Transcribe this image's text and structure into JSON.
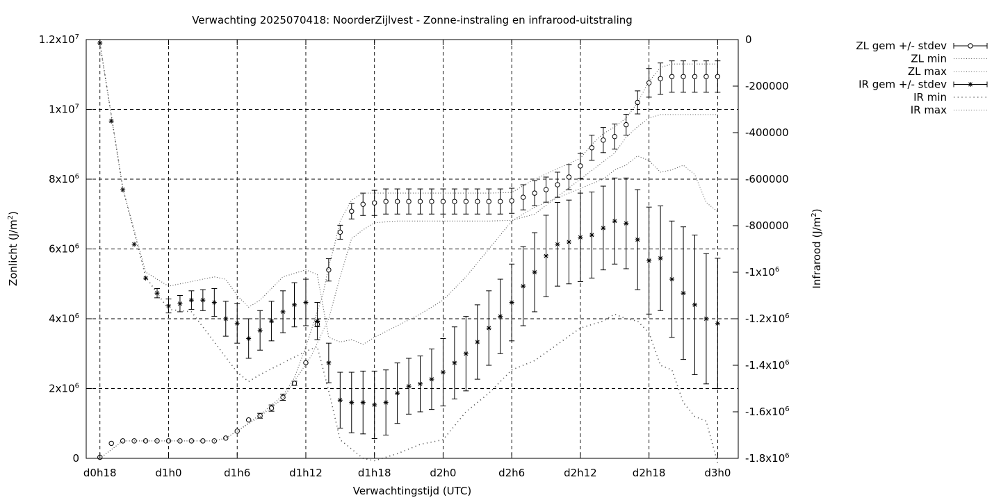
{
  "chart_data": {
    "type": "scatter",
    "title": "Verwachting 2025070418: NoorderZijlvest - Zonne-instraling en infrarood-uitstraling",
    "xlabel": "Verwachtingstijd (UTC)",
    "ylabel_left": {
      "text": "Zonlicht (J/m",
      "sup": "2",
      "close": ")"
    },
    "ylabel_right": {
      "text": "Infrarood (J/m",
      "sup": "2",
      "close": ")"
    },
    "x_unit": "hours since d0h0",
    "xlim": [
      16.8,
      73.8
    ],
    "ylim_left": [
      0,
      12000000
    ],
    "ylim_right": [
      -1800000,
      0
    ],
    "grid": true,
    "legend_position": "top-right, outside plot",
    "x_ticks": [
      {
        "value": 18,
        "label": "d0h18"
      },
      {
        "value": 24,
        "label": "d1h0"
      },
      {
        "value": 30,
        "label": "d1h6"
      },
      {
        "value": 36,
        "label": "d1h12"
      },
      {
        "value": 42,
        "label": "d1h18"
      },
      {
        "value": 48,
        "label": "d2h0"
      },
      {
        "value": 54,
        "label": "d2h6"
      },
      {
        "value": 60,
        "label": "d2h12"
      },
      {
        "value": 66,
        "label": "d2h18"
      },
      {
        "value": 72,
        "label": "d3h0"
      }
    ],
    "y_ticks_left": [
      {
        "value": 0,
        "label": "0"
      },
      {
        "value": 2000000,
        "label": "2x10",
        "sup": "6"
      },
      {
        "value": 4000000,
        "label": "4x10",
        "sup": "6"
      },
      {
        "value": 6000000,
        "label": "6x10",
        "sup": "6"
      },
      {
        "value": 8000000,
        "label": "8x10",
        "sup": "6"
      },
      {
        "value": 10000000,
        "label": "1x10",
        "sup": "7"
      },
      {
        "value": 12000000,
        "label": "1.2x10",
        "sup": "7"
      }
    ],
    "y_ticks_right": [
      {
        "value": 0,
        "label": "0"
      },
      {
        "value": -200000,
        "label": "-200000"
      },
      {
        "value": -400000,
        "label": "-400000"
      },
      {
        "value": -600000,
        "label": "-600000"
      },
      {
        "value": -800000,
        "label": "-800000"
      },
      {
        "value": -1000000,
        "label": "-1x10",
        "sup": "6"
      },
      {
        "value": -1200000,
        "label": "-1.2x10",
        "sup": "6"
      },
      {
        "value": -1400000,
        "label": "-1.4x10",
        "sup": "6"
      },
      {
        "value": -1600000,
        "label": "-1.6x10",
        "sup": "6"
      },
      {
        "value": -1800000,
        "label": "-1.8x10",
        "sup": "6"
      }
    ],
    "legend": [
      {
        "label": "ZL gem +/- stdev",
        "style": "errorbar-circle"
      },
      {
        "label": "ZL min",
        "style": "dotted"
      },
      {
        "label": "ZL max",
        "style": "dotted"
      },
      {
        "label": "IR gem +/- stdev",
        "style": "errorbar-star"
      },
      {
        "label": "IR min",
        "style": "dotted-coarse"
      },
      {
        "label": "IR max",
        "style": "dotted"
      }
    ],
    "series": [
      {
        "name": "ZL gem +/- stdev",
        "axis": "left",
        "marker": "circle",
        "x": [
          18,
          19,
          20,
          21,
          22,
          23,
          24,
          25,
          26,
          27,
          28,
          29,
          30,
          31,
          32,
          33,
          34,
          35,
          36,
          37,
          38,
          39,
          40,
          41,
          42,
          43,
          44,
          45,
          46,
          47,
          48,
          49,
          50,
          51,
          52,
          53,
          54,
          55,
          56,
          57,
          58,
          59,
          60,
          61,
          62,
          63,
          64,
          65,
          66,
          67,
          68,
          69,
          70,
          71,
          72
        ],
        "y": [
          30000,
          430000,
          500000,
          500000,
          500000,
          500000,
          500000,
          500000,
          500000,
          500000,
          500000,
          580000,
          780000,
          1100000,
          1220000,
          1440000,
          1750000,
          2150000,
          2740000,
          3840000,
          5400000,
          6480000,
          7080000,
          7280000,
          7320000,
          7360000,
          7360000,
          7360000,
          7360000,
          7360000,
          7360000,
          7360000,
          7360000,
          7360000,
          7360000,
          7360000,
          7380000,
          7480000,
          7600000,
          7700000,
          7840000,
          8060000,
          8380000,
          8900000,
          9120000,
          9220000,
          9560000,
          10200000,
          10760000,
          10880000,
          10940000,
          10940000,
          10940000,
          10940000,
          10940000
        ],
        "err": [
          0,
          0,
          0,
          0,
          0,
          0,
          0,
          0,
          0,
          0,
          0,
          0,
          0,
          0,
          70000,
          90000,
          90000,
          60000,
          0,
          70000,
          320000,
          200000,
          220000,
          320000,
          360000,
          360000,
          360000,
          360000,
          360000,
          360000,
          360000,
          360000,
          360000,
          360000,
          360000,
          360000,
          360000,
          360000,
          360000,
          360000,
          360000,
          360000,
          360000,
          360000,
          360000,
          360000,
          300000,
          330000,
          410000,
          450000,
          450000,
          450000,
          450000,
          450000,
          450000
        ]
      },
      {
        "name": "ZL min",
        "axis": "left",
        "style": "dotted",
        "x": [
          18,
          20,
          22,
          24,
          26,
          28,
          29,
          30,
          32,
          34,
          36,
          36.5,
          37,
          38,
          38.5,
          39,
          40,
          41,
          42,
          44,
          46,
          48,
          50,
          52,
          54,
          56,
          58,
          60,
          62,
          63,
          64,
          65,
          66,
          67,
          68,
          69,
          70,
          71,
          72
        ],
        "y": [
          0,
          500000,
          500000,
          500000,
          500000,
          500000,
          580000,
          780000,
          1200000,
          1720000,
          2700000,
          2950000,
          3300000,
          4000000,
          4600000,
          5200000,
          6300000,
          6550000,
          6750000,
          6800000,
          6800000,
          6800000,
          6800000,
          6800000,
          6820000,
          7000000,
          7500000,
          8000000,
          8500000,
          8750000,
          9200000,
          9500000,
          9750000,
          9850000,
          9850000,
          9850000,
          9850000,
          9850000,
          9850000
        ]
      },
      {
        "name": "ZL max",
        "axis": "left",
        "style": "dotted",
        "x": [
          18,
          20,
          22,
          24,
          26,
          28,
          29,
          30,
          32,
          34,
          35,
          36,
          36.5,
          37,
          37.5,
          38,
          38.5,
          39,
          40,
          41,
          42,
          44,
          46,
          48,
          50,
          52,
          54,
          56,
          58,
          60,
          61,
          62,
          63,
          64,
          65,
          66,
          67,
          68,
          69,
          70,
          71,
          72
        ],
        "y": [
          0,
          500000,
          500000,
          500000,
          500000,
          500000,
          580000,
          780000,
          1250000,
          1800000,
          2300000,
          3200000,
          3700000,
          4200000,
          4700000,
          5500000,
          6100000,
          6800000,
          7400000,
          7600000,
          7600000,
          7600000,
          7600000,
          7600000,
          7600000,
          7600000,
          7620000,
          8000000,
          8300000,
          8600000,
          9000000,
          9300000,
          9500000,
          9750000,
          10200000,
          10800000,
          11200000,
          11300000,
          11300000,
          11300000,
          11300000,
          11300000
        ]
      },
      {
        "name": "IR gem +/- stdev",
        "axis": "right",
        "marker": "star",
        "x": [
          18,
          19,
          20,
          21,
          22,
          23,
          24,
          25,
          26,
          27,
          28,
          29,
          30,
          31,
          32,
          33,
          34,
          35,
          36,
          37,
          38,
          39,
          40,
          41,
          42,
          43,
          44,
          45,
          46,
          47,
          48,
          49,
          50,
          51,
          52,
          53,
          54,
          55,
          56,
          57,
          58,
          59,
          60,
          61,
          62,
          63,
          64,
          65,
          66,
          67,
          68,
          69,
          70,
          71,
          72
        ],
        "y": [
          -15000,
          -350000,
          -645000,
          -880000,
          -1025000,
          -1090000,
          -1145000,
          -1135000,
          -1120000,
          -1120000,
          -1130000,
          -1200000,
          -1220000,
          -1285000,
          -1250000,
          -1210000,
          -1170000,
          -1140000,
          -1130000,
          -1210000,
          -1390000,
          -1550000,
          -1560000,
          -1560000,
          -1570000,
          -1560000,
          -1520000,
          -1490000,
          -1480000,
          -1460000,
          -1430000,
          -1390000,
          -1350000,
          -1300000,
          -1240000,
          -1190000,
          -1130000,
          -1060000,
          -1000000,
          -930000,
          -880000,
          -870000,
          -850000,
          -840000,
          -810000,
          -780000,
          -790000,
          -860000,
          -950000,
          -940000,
          -1030000,
          -1090000,
          -1140000,
          -1200000,
          -1220000
        ],
        "err": [
          0,
          0,
          0,
          0,
          0,
          20000,
          30000,
          35000,
          40000,
          45000,
          60000,
          75000,
          85000,
          85000,
          85000,
          85000,
          90000,
          95000,
          100000,
          80000,
          85000,
          120000,
          130000,
          135000,
          145000,
          140000,
          130000,
          120000,
          120000,
          130000,
          145000,
          155000,
          160000,
          160000,
          160000,
          160000,
          165000,
          170000,
          170000,
          175000,
          180000,
          180000,
          190000,
          185000,
          180000,
          185000,
          195000,
          215000,
          230000,
          225000,
          250000,
          285000,
          300000,
          280000,
          280000
        ]
      },
      {
        "name": "IR min",
        "axis": "right",
        "style": "dotted-coarse",
        "x": [
          18,
          20,
          22,
          24,
          26,
          28,
          30,
          31,
          32,
          34,
          36,
          37,
          38,
          39,
          40,
          41,
          42,
          44,
          46,
          48,
          50,
          52,
          54,
          56,
          58,
          60,
          62,
          63,
          64,
          65,
          66,
          67,
          68,
          69,
          70,
          71,
          72
        ],
        "y": [
          -15000,
          -640000,
          -1020000,
          -1160000,
          -1170000,
          -1300000,
          -1430000,
          -1470000,
          -1440000,
          -1390000,
          -1340000,
          -1320000,
          -1510000,
          -1720000,
          -1760000,
          -1800000,
          -1810000,
          -1780000,
          -1740000,
          -1720000,
          -1600000,
          -1520000,
          -1420000,
          -1380000,
          -1310000,
          -1240000,
          -1210000,
          -1180000,
          -1200000,
          -1210000,
          -1260000,
          -1400000,
          -1420000,
          -1560000,
          -1620000,
          -1640000,
          -1820000
        ]
      },
      {
        "name": "IR max",
        "axis": "right",
        "style": "dotted",
        "x": [
          18,
          20,
          22,
          24,
          26,
          28,
          29,
          30,
          31,
          32,
          34,
          36,
          37,
          38,
          39,
          40,
          41,
          42,
          44,
          46,
          48,
          50,
          52,
          54,
          56,
          58,
          60,
          62,
          63,
          64,
          65,
          66,
          67,
          68,
          69,
          70,
          71,
          72
        ],
        "y": [
          -15000,
          -640000,
          -1000000,
          -1060000,
          -1040000,
          -1020000,
          -1030000,
          -1100000,
          -1150000,
          -1120000,
          -1020000,
          -990000,
          -1010000,
          -1280000,
          -1300000,
          -1290000,
          -1310000,
          -1280000,
          -1230000,
          -1180000,
          -1120000,
          -1020000,
          -900000,
          -780000,
          -720000,
          -680000,
          -640000,
          -600000,
          -560000,
          -540000,
          -500000,
          -520000,
          -570000,
          -560000,
          -540000,
          -580000,
          -700000,
          -740000
        ]
      }
    ]
  }
}
